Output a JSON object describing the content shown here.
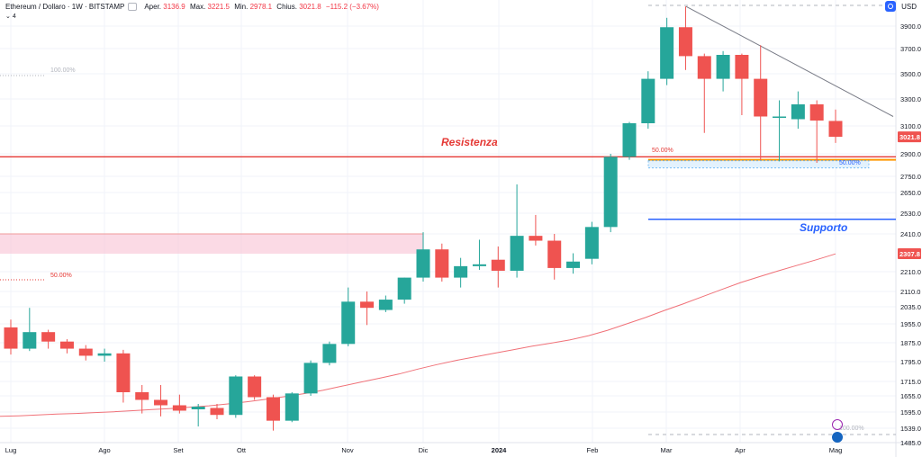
{
  "header": {
    "symbol": "Ethereum / Dollaro · 1W · BITSTAMP",
    "open_label": "Aper.",
    "open": "3136.9",
    "high_label": "Max.",
    "high": "3221.5",
    "low_label": "Min.",
    "low": "2978.1",
    "close_label": "Chius.",
    "close": "3021.8",
    "change": "−115.2 (−3.67%)",
    "indicator_count": "4"
  },
  "price_axis": {
    "currency": "USD"
  },
  "colors": {
    "up": "#26a69a",
    "down": "#ef5350",
    "ma": "#f07178",
    "resistance": "#e53935",
    "support": "#2962ff",
    "zone": "#f8bbd0",
    "trend": "#787b86"
  },
  "chart_data": {
    "type": "candlestick",
    "title": "Ethereum / Dollaro · 1W · BITSTAMP",
    "y_ticks": [
      3900.0,
      3700.0,
      3500.0,
      3300.0,
      3100.0,
      2900.0,
      2750.0,
      2650.0,
      2530.0,
      2410.0,
      2210.0,
      2110.0,
      2035.0,
      1955.0,
      1875.0,
      1795.0,
      1715.0,
      1655.0,
      1595.0,
      1539.0,
      1485.0
    ],
    "x_ticks": [
      "Lug",
      "Ago",
      "Set",
      "Ott",
      "Nov",
      "Dic",
      "2024",
      "Feb",
      "Mar",
      "Apr",
      "Mag"
    ],
    "last_price_label": "3021.8",
    "ma_price_label": "2307.8",
    "candles": [
      {
        "o": 1940,
        "h": 1975,
        "l": 1825,
        "c": 1850
      },
      {
        "o": 1850,
        "h": 2030,
        "l": 1840,
        "c": 1920
      },
      {
        "o": 1920,
        "h": 1930,
        "l": 1850,
        "c": 1880
      },
      {
        "o": 1880,
        "h": 1890,
        "l": 1830,
        "c": 1850
      },
      {
        "o": 1850,
        "h": 1865,
        "l": 1800,
        "c": 1820
      },
      {
        "o": 1820,
        "h": 1850,
        "l": 1795,
        "c": 1830
      },
      {
        "o": 1830,
        "h": 1845,
        "l": 1630,
        "c": 1670
      },
      {
        "o": 1670,
        "h": 1700,
        "l": 1590,
        "c": 1640
      },
      {
        "o": 1640,
        "h": 1700,
        "l": 1580,
        "c": 1620
      },
      {
        "o": 1620,
        "h": 1660,
        "l": 1590,
        "c": 1600
      },
      {
        "o": 1605,
        "h": 1625,
        "l": 1545,
        "c": 1615
      },
      {
        "o": 1610,
        "h": 1625,
        "l": 1570,
        "c": 1585
      },
      {
        "o": 1585,
        "h": 1740,
        "l": 1575,
        "c": 1735
      },
      {
        "o": 1735,
        "h": 1740,
        "l": 1640,
        "c": 1650
      },
      {
        "o": 1650,
        "h": 1660,
        "l": 1530,
        "c": 1565
      },
      {
        "o": 1565,
        "h": 1670,
        "l": 1560,
        "c": 1665
      },
      {
        "o": 1665,
        "h": 1800,
        "l": 1655,
        "c": 1790
      },
      {
        "o": 1790,
        "h": 1880,
        "l": 1780,
        "c": 1870
      },
      {
        "o": 1870,
        "h": 2130,
        "l": 1860,
        "c": 2060
      },
      {
        "o": 2060,
        "h": 2110,
        "l": 1950,
        "c": 2030
      },
      {
        "o": 2020,
        "h": 2090,
        "l": 2010,
        "c": 2070
      },
      {
        "o": 2070,
        "h": 2180,
        "l": 2050,
        "c": 2180
      },
      {
        "o": 2180,
        "h": 2420,
        "l": 2160,
        "c": 2330
      },
      {
        "o": 2330,
        "h": 2360,
        "l": 2160,
        "c": 2180
      },
      {
        "o": 2180,
        "h": 2285,
        "l": 2130,
        "c": 2240
      },
      {
        "o": 2240,
        "h": 2380,
        "l": 2220,
        "c": 2250
      },
      {
        "o": 2275,
        "h": 2345,
        "l": 2130,
        "c": 2215
      },
      {
        "o": 2215,
        "h": 2700,
        "l": 2180,
        "c": 2400
      },
      {
        "o": 2400,
        "h": 2520,
        "l": 2350,
        "c": 2375
      },
      {
        "o": 2375,
        "h": 2410,
        "l": 2170,
        "c": 2230
      },
      {
        "o": 2230,
        "h": 2310,
        "l": 2200,
        "c": 2265
      },
      {
        "o": 2280,
        "h": 2480,
        "l": 2250,
        "c": 2450
      },
      {
        "o": 2450,
        "h": 2900,
        "l": 2420,
        "c": 2880
      },
      {
        "o": 2880,
        "h": 3130,
        "l": 2860,
        "c": 3120
      },
      {
        "o": 3120,
        "h": 3520,
        "l": 3080,
        "c": 3460
      },
      {
        "o": 3460,
        "h": 3980,
        "l": 3410,
        "c": 3890
      },
      {
        "o": 3890,
        "h": 4090,
        "l": 3530,
        "c": 3640
      },
      {
        "o": 3640,
        "h": 3660,
        "l": 3050,
        "c": 3460
      },
      {
        "o": 3460,
        "h": 3680,
        "l": 3360,
        "c": 3650
      },
      {
        "o": 3650,
        "h": 3660,
        "l": 3180,
        "c": 3460
      },
      {
        "o": 3460,
        "h": 3730,
        "l": 2860,
        "c": 3170
      },
      {
        "o": 3160,
        "h": 3290,
        "l": 2850,
        "c": 3170
      },
      {
        "o": 3150,
        "h": 3360,
        "l": 3080,
        "c": 3260
      },
      {
        "o": 3260,
        "h": 3290,
        "l": 2840,
        "c": 3140
      },
      {
        "o": 3137,
        "h": 3222,
        "l": 2978,
        "c": 3022
      }
    ],
    "ma_series": [
      1580,
      1582,
      1585,
      1588,
      1590,
      1593,
      1596,
      1600,
      1604,
      1608,
      1613,
      1618,
      1625,
      1633,
      1642,
      1652,
      1664,
      1678,
      1695,
      1712,
      1728,
      1745,
      1765,
      1783,
      1800,
      1815,
      1830,
      1845,
      1860,
      1873,
      1887,
      1905,
      1928,
      1955,
      1985,
      2018,
      2050,
      2085,
      2120,
      2155,
      2185,
      2215,
      2245,
      2275,
      2307
    ],
    "annotations": [
      {
        "text": "Resistenza",
        "color": "#e53935"
      },
      {
        "text": "Supporto",
        "color": "#2962ff"
      },
      {
        "text": "100.00%",
        "color": "#b2b5be"
      },
      {
        "text": "50.00%",
        "color": "#e53935"
      },
      {
        "text": "50.00%",
        "color": "#e53935"
      },
      {
        "text": "50.00%",
        "color": "#2962ff"
      },
      {
        "text": "100.00%",
        "color": "#b2b5be"
      }
    ]
  }
}
